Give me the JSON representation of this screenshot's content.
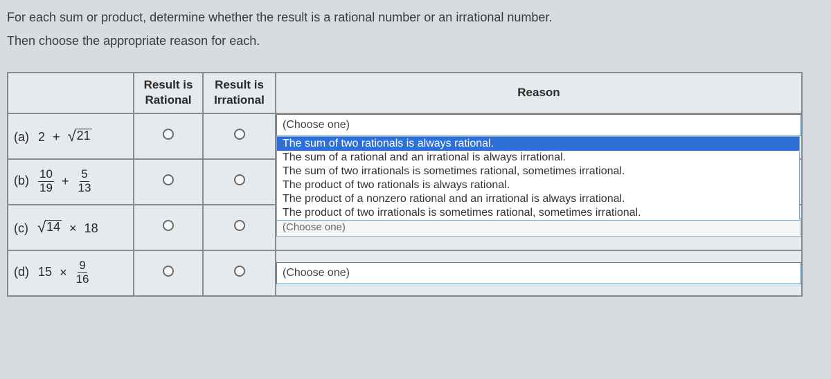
{
  "instructions": {
    "line1": "For each sum or product, determine whether the result is a rational number or an irrational number.",
    "line2": "Then choose the appropriate reason for each."
  },
  "headers": {
    "rational_l1": "Result is",
    "rational_l2": "Rational",
    "irrational_l1": "Result is",
    "irrational_l2": "Irrational",
    "reason": "Reason"
  },
  "rows": {
    "a": {
      "label": "(a)",
      "lhs": "2",
      "op": "+",
      "sqrt_arg": "21"
    },
    "b": {
      "label": "(b)",
      "f1n": "10",
      "f1d": "19",
      "op": "+",
      "f2n": "5",
      "f2d": "13"
    },
    "c": {
      "label": "(c)",
      "sqrt_arg": "14",
      "op": "×",
      "rhs": "18"
    },
    "d": {
      "label": "(d)",
      "lhs": "15",
      "op": "×",
      "fn": "9",
      "fd": "16"
    }
  },
  "dropdown": {
    "placeholder": "(Choose one)",
    "opts": [
      "The sum of two rationals is always rational.",
      "The sum of a rational and an irrational is always irrational.",
      "The sum of two irrationals is sometimes rational, sometimes irrational.",
      "The product of two rationals is always rational.",
      "The product of a nonzero rational and an irrational is always irrational.",
      "The product of two irrationals is sometimes rational, sometimes irrational."
    ]
  }
}
